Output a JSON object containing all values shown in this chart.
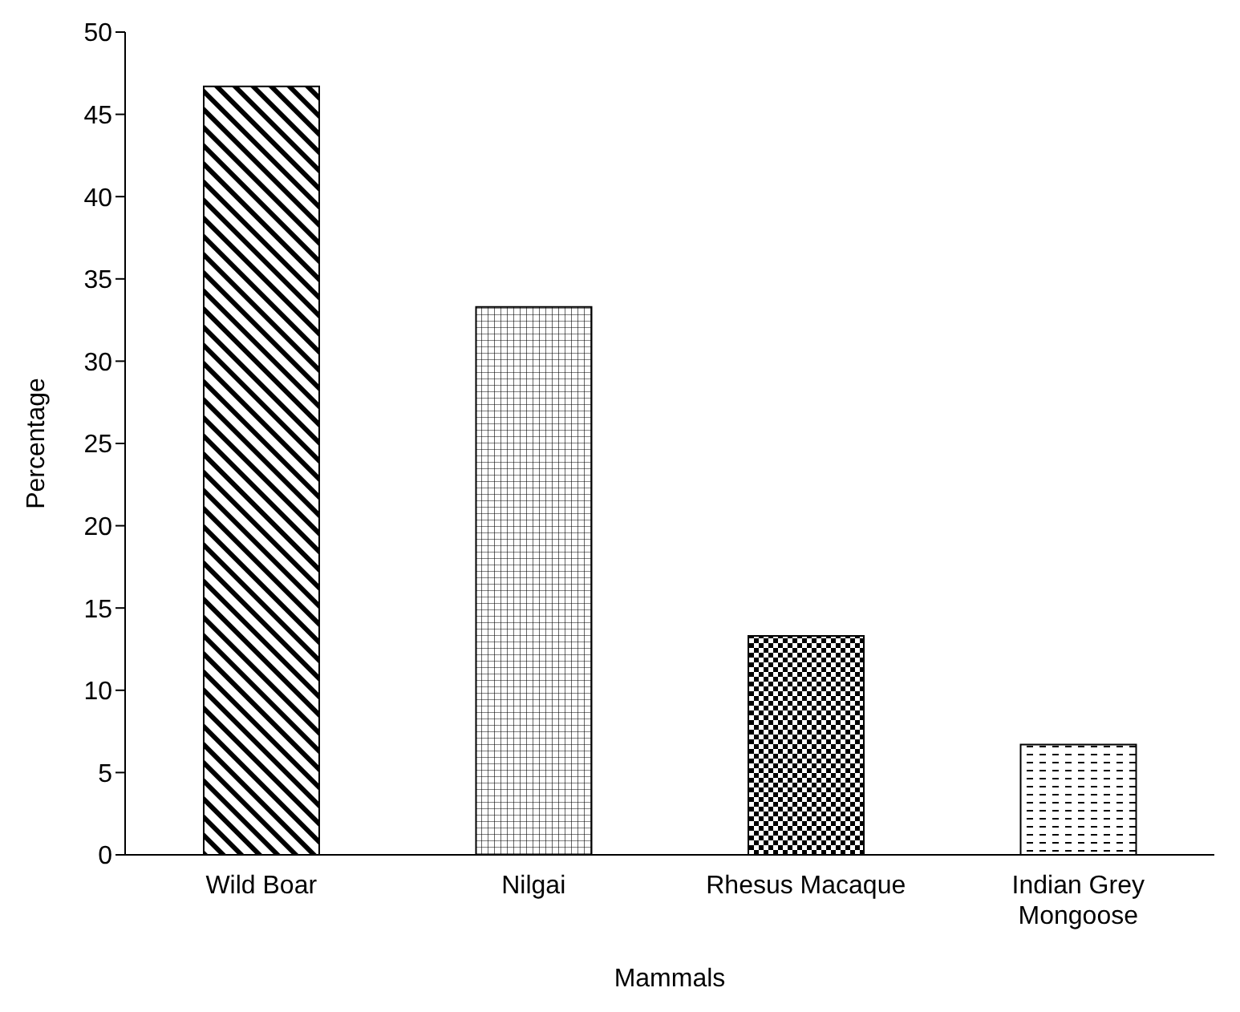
{
  "chart_data": {
    "type": "bar",
    "xlabel": "Mammals",
    "ylabel": "Percentage",
    "categories": [
      "Wild Boar",
      "Nilgai",
      "Rhesus Macaque",
      "Indian Grey Mongoose"
    ],
    "values": [
      46.7,
      33.3,
      13.3,
      6.7
    ],
    "colors": [
      "#000000",
      "#000000",
      "#000000",
      "#000000"
    ],
    "ylim": [
      0,
      50
    ],
    "yticks": [
      0,
      5,
      10,
      15,
      20,
      25,
      30,
      35,
      40,
      45,
      50
    ],
    "grid": false
  }
}
